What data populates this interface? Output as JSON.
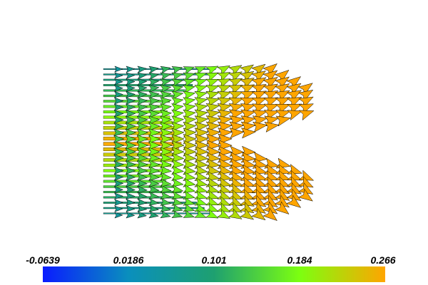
{
  "colormap": {
    "ticks": [
      "-0.0639",
      "0.0186",
      "0.101",
      "0.184",
      "0.266"
    ],
    "stops": [
      "#0a1cff",
      "#0a8fbd",
      "#1ea070",
      "#7cff10",
      "#ffa500"
    ]
  },
  "scene": {
    "background": "#ffffff",
    "glyph_outline": "#000000"
  }
}
